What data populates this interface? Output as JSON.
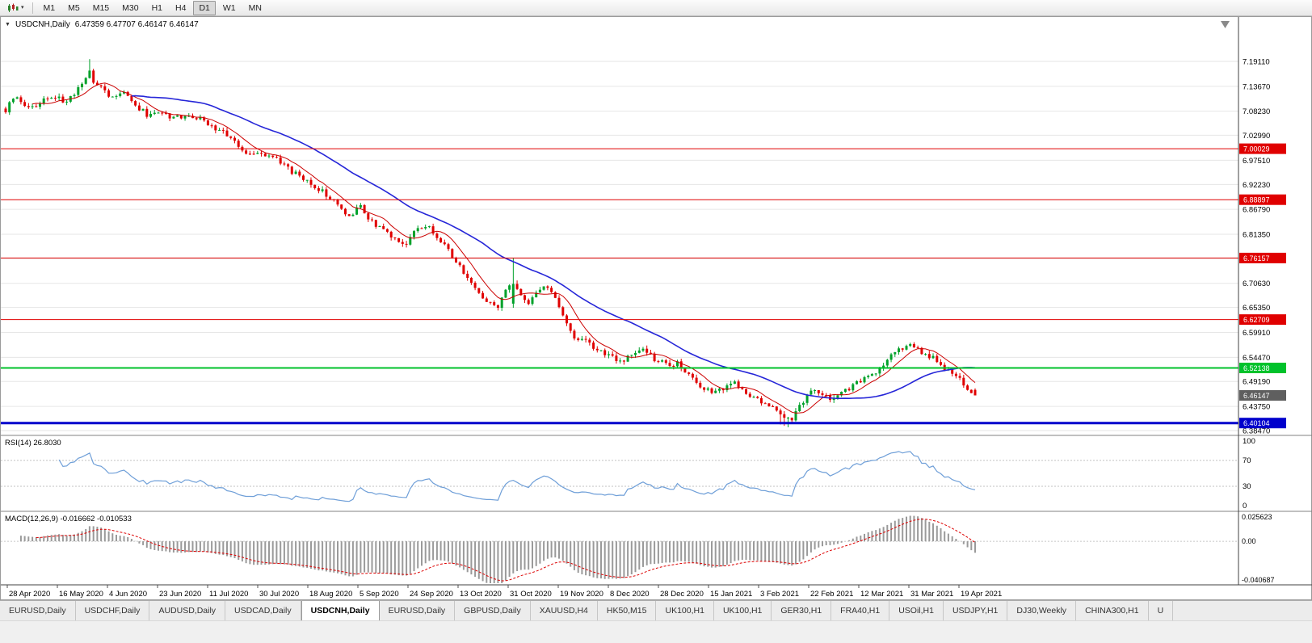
{
  "toolbar": {
    "timeframes": [
      "M1",
      "M5",
      "M15",
      "M30",
      "H1",
      "H4",
      "D1",
      "W1",
      "MN"
    ],
    "active_timeframe": "D1"
  },
  "chart": {
    "title": "USDCNH,Daily",
    "ohlc_text": "6.47359 6.47707 6.46147 6.46147",
    "up_color": "#00a12a",
    "down_color": "#e00000",
    "ma_fast_color": "#cc0000",
    "ma_slow_color": "#2626d8",
    "y_axis_labels": [
      "7.19110",
      "7.13670",
      "7.08230",
      "7.02990",
      "6.97510",
      "6.92230",
      "6.86790",
      "6.81350",
      "6.76030",
      "6.70630",
      "6.65350",
      "6.59910",
      "6.54470",
      "6.49190",
      "6.43750",
      "6.38470"
    ],
    "x_axis_labels": [
      "28 Apr 2020",
      "16 May 2020",
      "4 Jun 2020",
      "23 Jun 2020",
      "11 Jul 2020",
      "30 Jul 2020",
      "18 Aug 2020",
      "5 Sep 2020",
      "24 Sep 2020",
      "13 Oct 2020",
      "31 Oct 2020",
      "19 Nov 2020",
      "8 Dec 2020",
      "28 Dec 2020",
      "15 Jan 2021",
      "3 Feb 2021",
      "22 Feb 2021",
      "12 Mar 2021",
      "31 Mar 2021",
      "19 Apr 2021"
    ],
    "hlines": [
      {
        "price": 7.00029,
        "label": "7.00029",
        "color": "#e00000",
        "width": 1
      },
      {
        "price": 6.88897,
        "label": "6.88897",
        "color": "#e00000",
        "width": 1
      },
      {
        "price": 6.76157,
        "label": "6.76157",
        "color": "#e00000",
        "width": 1
      },
      {
        "price": 6.62709,
        "label": "6.62709",
        "color": "#e00000",
        "width": 1
      },
      {
        "price": 6.52138,
        "label": "6.52138",
        "color": "#00c22b",
        "width": 2
      },
      {
        "price": 6.40104,
        "label": "6.40104",
        "color": "#0000cc",
        "width": 3
      }
    ],
    "current_price": {
      "value": 6.46147,
      "label": "6.46147",
      "color": "#5f5f5f"
    }
  },
  "rsi": {
    "label": "RSI(14) 26.8030",
    "value": 26.803,
    "line_color": "#6f9fd8",
    "axis_labels": [
      "100",
      "70",
      "30",
      "0"
    ],
    "levels": [
      70,
      30
    ]
  },
  "macd": {
    "label": "MACD(12,26,9) -0.016662 -0.010533",
    "macd_value": -0.016662,
    "signal_value": -0.010533,
    "axis_labels": [
      "0.025623",
      "0.00",
      "-0.040687"
    ],
    "histogram_color": "#9a9a9a",
    "signal_color": "#dd0000"
  },
  "tabs": {
    "items": [
      "EURUSD,Daily",
      "USDCHF,Daily",
      "AUDUSD,Daily",
      "USDCAD,Daily",
      "USDCNH,Daily",
      "EURUSD,Daily",
      "GBPUSD,Daily",
      "XAUUSD,H4",
      "HK50,M15",
      "UK100,H1",
      "UK100,H1",
      "GER30,H1",
      "FRA40,H1",
      "USOil,H1",
      "USDJPY,H1",
      "DJ30,Weekly",
      "CHINA300,H1",
      "U"
    ],
    "active_index": 4
  },
  "chart_data": {
    "type": "candlestick",
    "symbol": "USDCNH",
    "timeframe": "Daily",
    "current_ohlc": {
      "open": 6.47359,
      "high": 6.47707,
      "low": 6.46147,
      "close": 6.46147
    },
    "num_candles": 255,
    "price_range_visible": [
      6.3847,
      7.1911
    ],
    "support_resistance_levels": [
      7.00029,
      6.88897,
      6.76157,
      6.62709,
      6.52138,
      6.40104
    ],
    "price_anchors": [
      [
        0,
        7.085
      ],
      [
        2,
        7.115
      ],
      [
        4,
        7.1
      ],
      [
        7,
        7.09
      ],
      [
        10,
        7.105
      ],
      [
        13,
        7.115
      ],
      [
        16,
        7.1
      ],
      [
        19,
        7.13
      ],
      [
        21,
        7.155
      ],
      [
        22,
        7.172
      ],
      [
        23,
        7.148
      ],
      [
        25,
        7.135
      ],
      [
        28,
        7.11
      ],
      [
        31,
        7.124
      ],
      [
        34,
        7.095
      ],
      [
        37,
        7.075
      ],
      [
        40,
        7.085
      ],
      [
        44,
        7.065
      ],
      [
        48,
        7.075
      ],
      [
        52,
        7.06
      ],
      [
        55,
        7.045
      ],
      [
        58,
        7.03
      ],
      [
        61,
        7.005
      ],
      [
        64,
        6.985
      ],
      [
        66,
        6.995
      ],
      [
        69,
        6.985
      ],
      [
        72,
        6.97
      ],
      [
        75,
        6.95
      ],
      [
        78,
        6.935
      ],
      [
        81,
        6.92
      ],
      [
        84,
        6.9
      ],
      [
        87,
        6.875
      ],
      [
        90,
        6.855
      ],
      [
        93,
        6.875
      ],
      [
        96,
        6.84
      ],
      [
        99,
        6.82
      ],
      [
        102,
        6.8
      ],
      [
        105,
        6.795
      ],
      [
        107,
        6.82
      ],
      [
        110,
        6.835
      ],
      [
        113,
        6.805
      ],
      [
        116,
        6.78
      ],
      [
        119,
        6.74
      ],
      [
        121,
        6.715
      ],
      [
        124,
        6.685
      ],
      [
        127,
        6.66
      ],
      [
        129,
        6.65
      ],
      [
        131,
        6.69
      ],
      [
        133,
        6.705
      ],
      [
        135,
        6.675
      ],
      [
        137,
        6.66
      ],
      [
        139,
        6.685
      ],
      [
        141,
        6.705
      ],
      [
        143,
        6.69
      ],
      [
        145,
        6.65
      ],
      [
        147,
        6.615
      ],
      [
        149,
        6.59
      ],
      [
        152,
        6.578
      ],
      [
        155,
        6.558
      ],
      [
        158,
        6.548
      ],
      [
        161,
        6.532
      ],
      [
        164,
        6.548
      ],
      [
        167,
        6.562
      ],
      [
        170,
        6.542
      ],
      [
        173,
        6.528
      ],
      [
        176,
        6.532
      ],
      [
        179,
        6.505
      ],
      [
        182,
        6.483
      ],
      [
        185,
        6.468
      ],
      [
        188,
        6.478
      ],
      [
        191,
        6.488
      ],
      [
        194,
        6.462
      ],
      [
        197,
        6.452
      ],
      [
        200,
        6.442
      ],
      [
        202,
        6.425
      ],
      [
        204,
        6.408
      ],
      [
        206,
        6.412
      ],
      [
        208,
        6.44
      ],
      [
        210,
        6.462
      ],
      [
        212,
        6.472
      ],
      [
        214,
        6.465
      ],
      [
        216,
        6.455
      ],
      [
        218,
        6.462
      ],
      [
        220,
        6.472
      ],
      [
        222,
        6.482
      ],
      [
        224,
        6.495
      ],
      [
        226,
        6.505
      ],
      [
        228,
        6.515
      ],
      [
        230,
        6.53
      ],
      [
        232,
        6.548
      ],
      [
        234,
        6.562
      ],
      [
        236,
        6.572
      ],
      [
        238,
        6.565
      ],
      [
        240,
        6.556
      ],
      [
        242,
        6.548
      ],
      [
        244,
        6.54
      ],
      [
        246,
        6.522
      ],
      [
        248,
        6.508
      ],
      [
        250,
        6.498
      ],
      [
        252,
        6.478
      ],
      [
        253,
        6.472
      ],
      [
        254,
        6.4615
      ]
    ],
    "indicators": {
      "rsi": {
        "period": 14,
        "current": 26.803,
        "range": [
          0,
          100
        ],
        "levels": [
          70,
          30
        ]
      },
      "macd": {
        "fast": 12,
        "slow": 26,
        "signal": 9,
        "current_macd": -0.016662,
        "current_signal": -0.010533,
        "axis_range": [
          -0.040687,
          0.025623
        ]
      }
    },
    "moving_averages": [
      {
        "name": "fast-ma",
        "color": "#cc0000"
      },
      {
        "name": "slow-ma",
        "color": "#2626d8"
      }
    ]
  }
}
